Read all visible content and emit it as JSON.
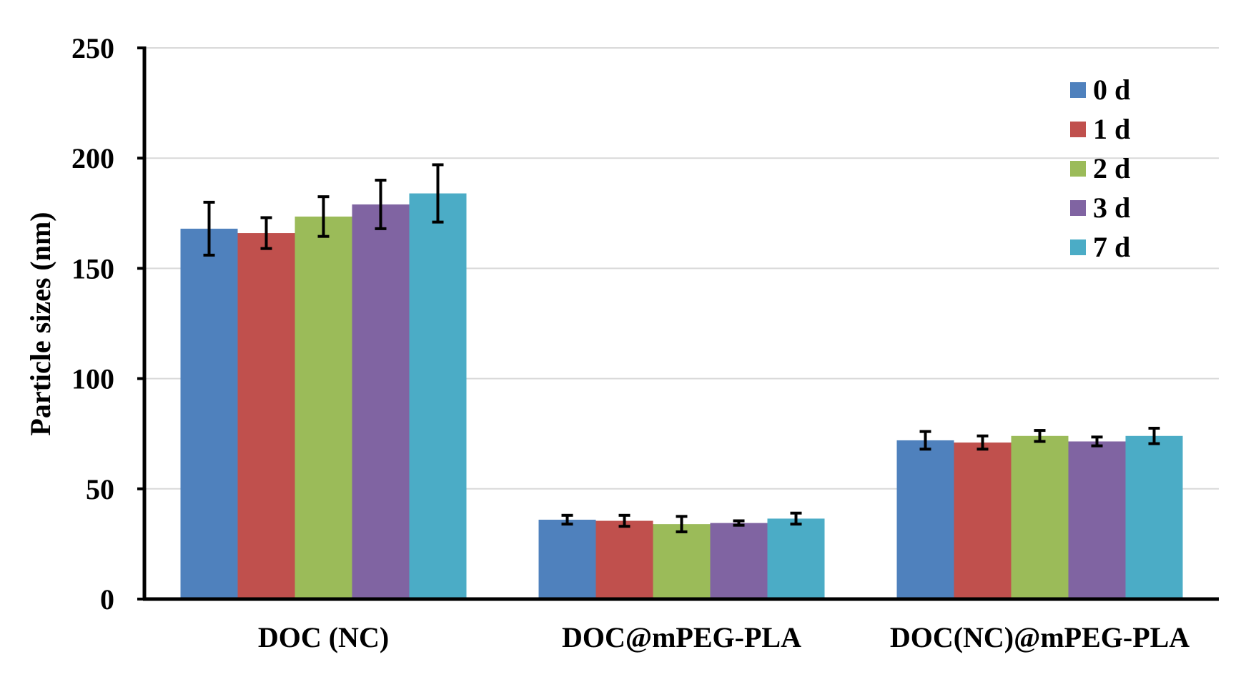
{
  "chart_data": {
    "type": "bar",
    "title": "",
    "xlabel": "",
    "ylabel": "Particle sizes (nm)",
    "ylim": [
      0,
      250
    ],
    "yticks": [
      "0",
      "50",
      "100",
      "150",
      "200",
      "250"
    ],
    "ytick_values": [
      0,
      50,
      100,
      150,
      200,
      250
    ],
    "grid": true,
    "legend_position": "top-right",
    "categories": [
      "DOC (NC)",
      "DOC@mPEG-PLA",
      "DOC(NC)@mPEG-PLA"
    ],
    "series": [
      {
        "name": "0 d",
        "color": "#4f81bd",
        "values": [
          168,
          36,
          72
        ],
        "errors": [
          12,
          2,
          4
        ]
      },
      {
        "name": "1 d",
        "color": "#c0504d",
        "values": [
          166,
          35.5,
          71
        ],
        "errors": [
          7,
          2.5,
          3
        ]
      },
      {
        "name": "2 d",
        "color": "#9bbb59",
        "values": [
          173.5,
          34,
          74
        ],
        "errors": [
          9,
          3.5,
          2.5
        ]
      },
      {
        "name": "3 d",
        "color": "#8064a2",
        "values": [
          179,
          34.5,
          71.5
        ],
        "errors": [
          11,
          1,
          2
        ]
      },
      {
        "name": "7 d",
        "color": "#4bacc6",
        "values": [
          184,
          36.5,
          74
        ],
        "errors": [
          13,
          2.5,
          3.5
        ]
      }
    ]
  }
}
